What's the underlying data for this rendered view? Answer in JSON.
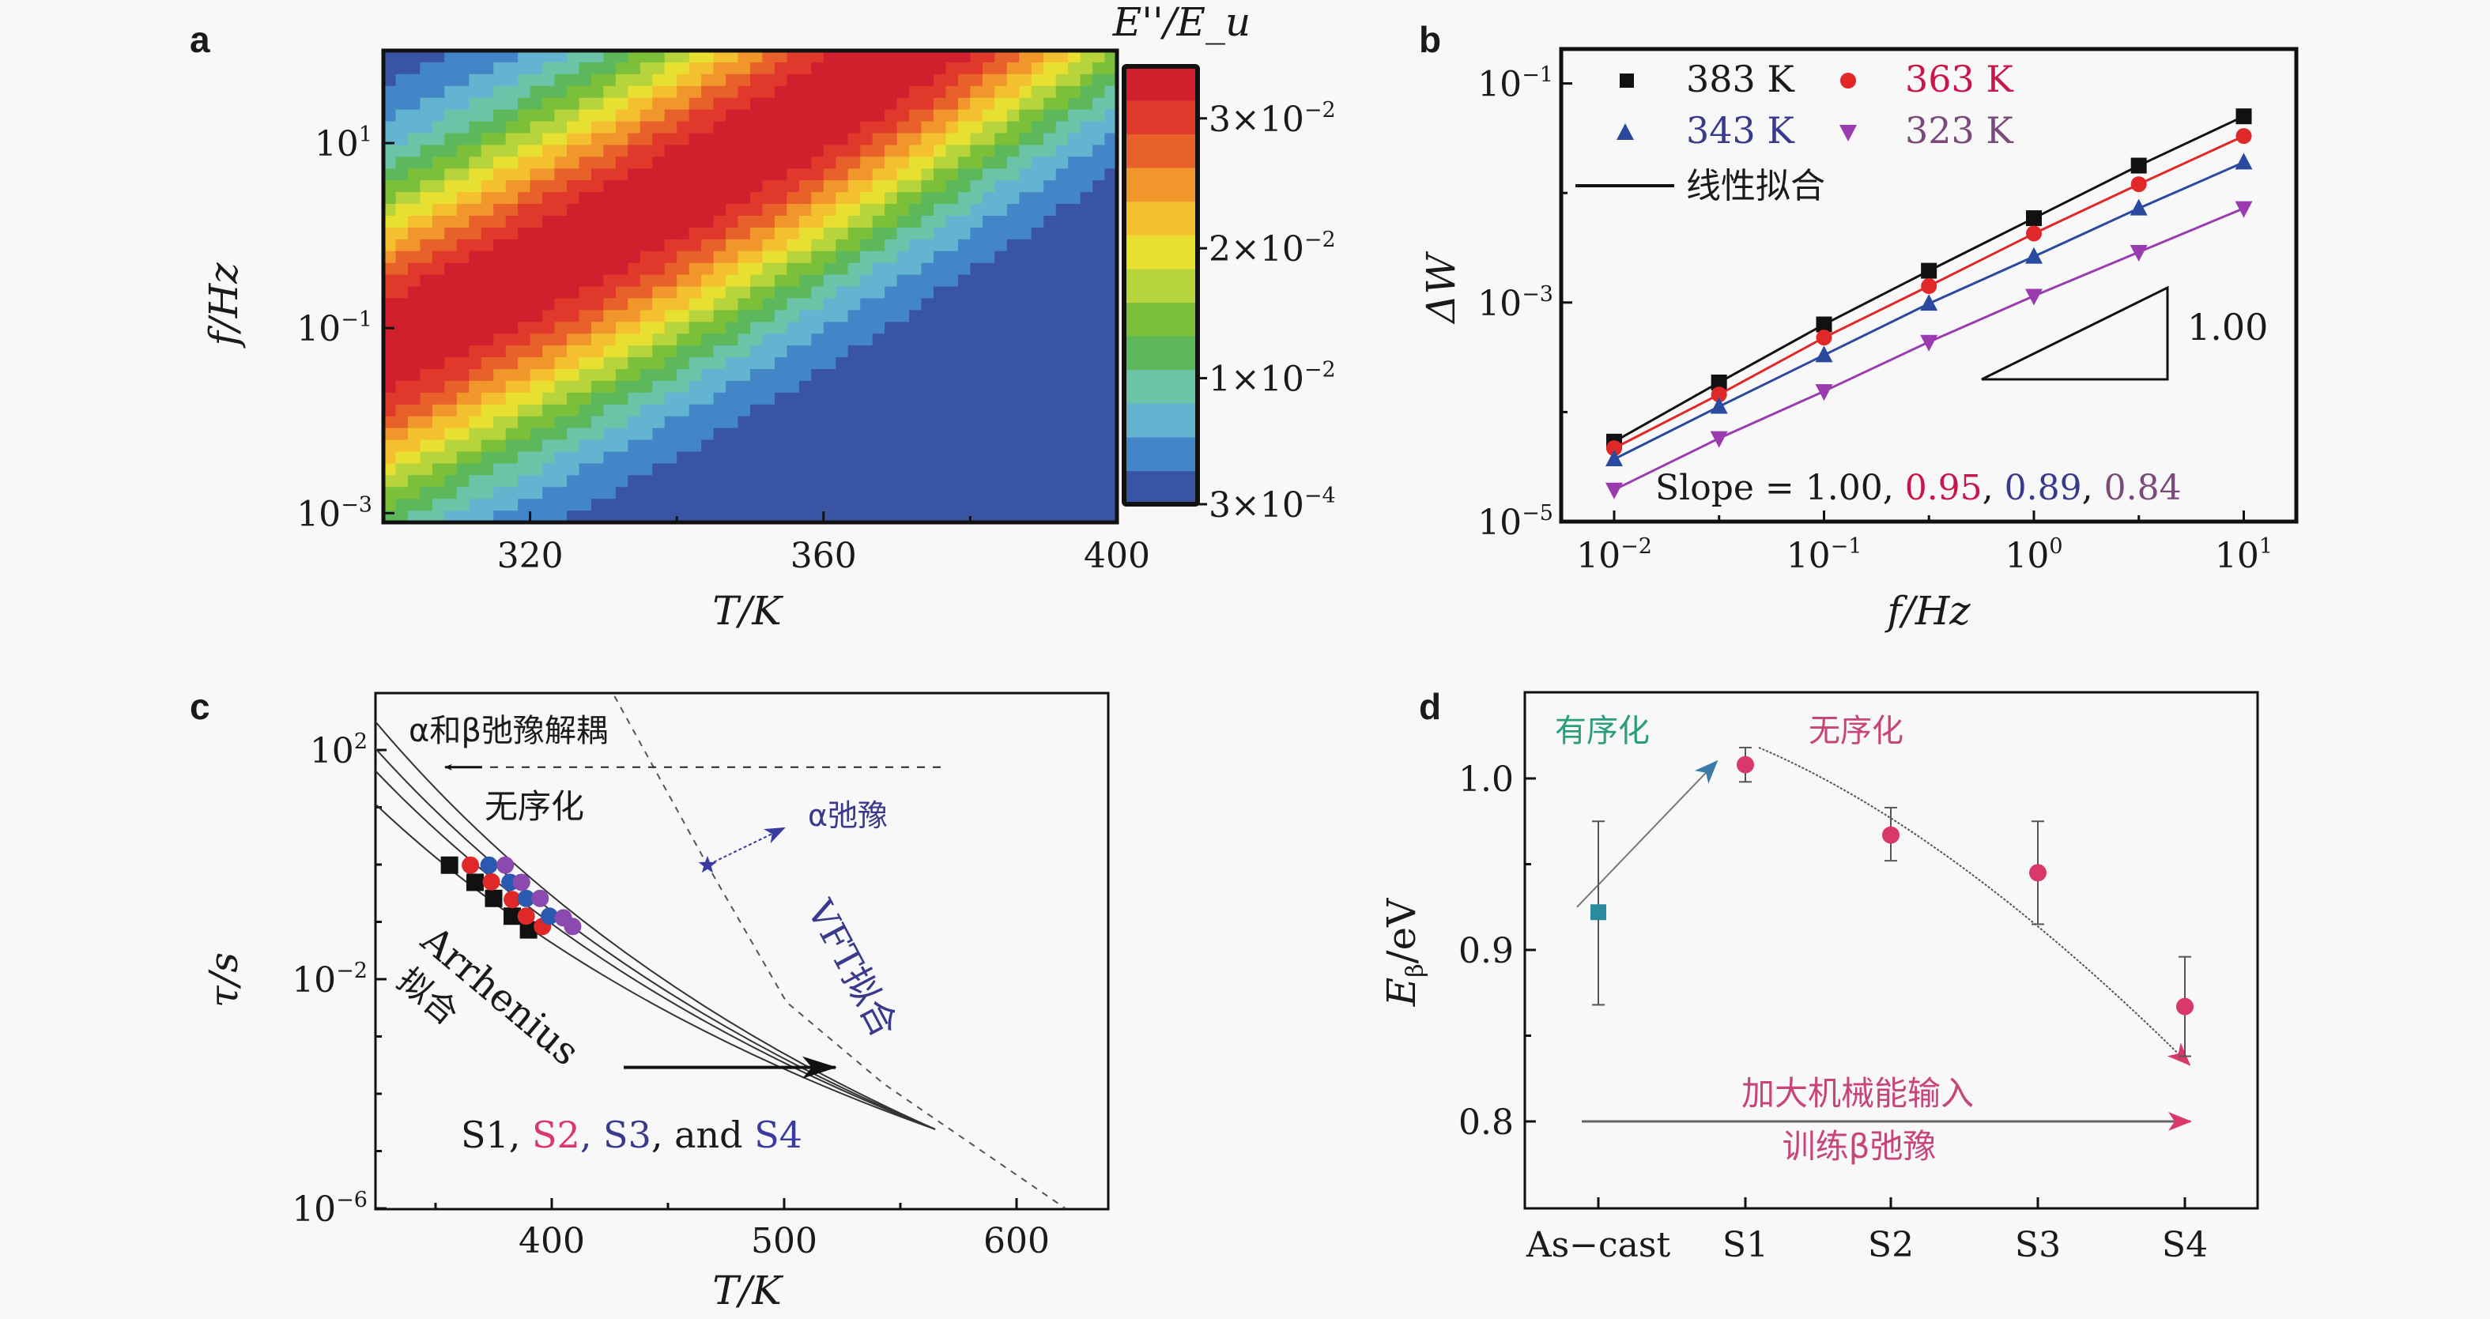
{
  "figure": {
    "panels": [
      "a",
      "b",
      "c",
      "d"
    ]
  },
  "chart_data": [
    {
      "id": "a",
      "type": "heatmap",
      "title": "",
      "xlabel": "T/K",
      "ylabel": "f/Hz",
      "x_range": [
        300,
        400
      ],
      "y_range_log10": [
        -3.1,
        2.0
      ],
      "x_ticks": [
        320,
        360,
        400
      ],
      "x_tick_labels": [
        "320",
        "360",
        "400"
      ],
      "y_ticks_log10": [
        1,
        -1,
        -3
      ],
      "y_tick_labels": [
        "10^1",
        "10^-1",
        "10^-3"
      ],
      "colorbar": {
        "title": "E''/E_u",
        "min": 0.0003,
        "max": 0.034,
        "ticks": [
          0.03,
          0.02,
          0.01,
          0.0003
        ],
        "tick_labels": [
          "3×10^-2",
          "2×10^-2",
          "1×10^-2",
          "3×10^-4"
        ],
        "colors": [
          "#3a54a4",
          "#4386c8",
          "#62b4d0",
          "#6cc4a8",
          "#5cb85a",
          "#7cc03a",
          "#b8d43c",
          "#e8e030",
          "#f4c030",
          "#f0962a",
          "#e8602a",
          "#e0382a",
          "#d0202e"
        ]
      },
      "description": "Loss modulus peak ridge runs diagonally: peak temperature rises with frequency"
    },
    {
      "id": "b",
      "type": "scatter",
      "xlabel": "f/Hz",
      "ylabel": "ΔW",
      "x_scale": "log",
      "y_scale": "log",
      "x_range_log10": [
        -2.26,
        1.25
      ],
      "y_range_log10": [
        -5,
        -0.69
      ],
      "x_ticks_log10": [
        -2,
        -1,
        0,
        1
      ],
      "x_tick_labels": [
        "10^-2",
        "10^-1",
        "10^0",
        "10^1"
      ],
      "y_ticks_log10": [
        -1,
        -3,
        -5
      ],
      "y_tick_labels": [
        "10^-1",
        "10^-3",
        "10^-5"
      ],
      "x": [
        0.01,
        0.0316,
        0.1,
        0.316,
        1,
        3.16,
        10
      ],
      "series": [
        {
          "name": "383 K",
          "marker": "square",
          "color": "#111111",
          "label_color": "#111111",
          "log10_values": [
            -4.27,
            -3.73,
            -3.2,
            -2.71,
            -2.23,
            -1.75,
            -1.3
          ]
        },
        {
          "name": "363 K",
          "marker": "circle",
          "color": "#e02828",
          "label_color": "#c8174a",
          "log10_values": [
            -4.33,
            -3.84,
            -3.32,
            -2.85,
            -2.37,
            -1.92,
            -1.48
          ]
        },
        {
          "name": "343 K",
          "marker": "triangle-up",
          "color": "#2a4aa0",
          "label_color": "#3a3a8c",
          "log10_values": [
            -4.43,
            -3.95,
            -3.48,
            -3.01,
            -2.58,
            -2.14,
            -1.72
          ]
        },
        {
          "name": "323 K",
          "marker": "triangle-down",
          "color": "#9a3cb0",
          "label_color": "#7a4a7a",
          "log10_values": [
            -4.71,
            -4.24,
            -3.81,
            -3.36,
            -2.94,
            -2.54,
            -2.14
          ]
        }
      ],
      "fit_legend": "线性拟合",
      "slope_prefix": "Slope = ",
      "slopes": [
        "1.00",
        "0.95",
        "0.89",
        "0.84"
      ],
      "triangle_label": "1.00",
      "legend_position": "top-left"
    },
    {
      "id": "c",
      "type": "scatter",
      "xlabel": "T/K",
      "ylabel": "τ/s",
      "y_scale": "log",
      "x_range": [
        324,
        639
      ],
      "y_range_log10": [
        -6,
        3
      ],
      "x_ticks": [
        400,
        500,
        600
      ],
      "x_tick_labels": [
        "400",
        "500",
        "600"
      ],
      "y_ticks_log10": [
        2,
        -2,
        -6
      ],
      "y_tick_labels": [
        "10^2",
        "10^-2",
        "10^-6"
      ],
      "series": [
        {
          "name": "S1",
          "marker": "square",
          "color": "#111111",
          "T": [
            356,
            367,
            375,
            383,
            390
          ],
          "log10_tau": [
            -0.01,
            -0.31,
            -0.59,
            -0.9,
            -1.14
          ]
        },
        {
          "name": "S2",
          "marker": "circle",
          "color": "#e02828",
          "T": [
            365,
            374,
            383,
            389,
            396
          ],
          "log10_tau": [
            -0.01,
            -0.3,
            -0.61,
            -0.9,
            -1.08
          ]
        },
        {
          "name": "S3",
          "marker": "circle",
          "color": "#2a5ab0",
          "T": [
            373,
            382,
            389,
            399
          ],
          "log10_tau": [
            -0.01,
            -0.31,
            -0.59,
            -0.9
          ]
        },
        {
          "name": "S4",
          "marker": "circle",
          "color": "#8a4ab0",
          "T": [
            380,
            387,
            395,
            405,
            409
          ],
          "log10_tau": [
            -0.01,
            -0.31,
            -0.59,
            -0.93,
            -1.08
          ]
        }
      ],
      "arrhenius_fits": [
        {
          "T": [
            324,
            565
          ],
          "log10_tau": [
            2.5,
            -4.62
          ]
        },
        {
          "T": [
            324,
            565
          ],
          "log10_tau": [
            2.03,
            -4.62
          ]
        },
        {
          "T": [
            324,
            565
          ],
          "log10_tau": [
            1.64,
            -4.62
          ]
        },
        {
          "T": [
            324,
            565
          ],
          "log10_tau": [
            1.06,
            -4.62
          ]
        }
      ],
      "vft_fit": {
        "T": [
          427,
          467,
          501,
          543,
          621
        ],
        "log10_tau": [
          2.94,
          -0.01,
          -2.4,
          -3.83,
          -6.0
        ]
      },
      "alpha_point": {
        "T": 467,
        "log10_tau": -0.01,
        "color": "#3a3aa0"
      },
      "decoupling_line_log10_tau": 1.7,
      "annotations": {
        "decoupling": "α和β弛豫解耦",
        "disorder": "无序化",
        "alpha_relax": "α弛豫",
        "arrhenius": "Arrhenius",
        "arrhenius_fit": "拟合",
        "vft_fit": "VFT拟合",
        "samples_prefix": "S1, ",
        "samples": [
          "S2",
          ", S3",
          ", and ",
          "S4"
        ]
      }
    },
    {
      "id": "d",
      "type": "scatter",
      "xlabel": "",
      "ylabel": "E_β/eV",
      "y_range": [
        0.75,
        1.05
      ],
      "y_ticks": [
        1.0,
        0.9,
        0.8
      ],
      "y_tick_labels": [
        "1.0",
        "0.9",
        "0.8"
      ],
      "categories": [
        "As−cast",
        "S1",
        "S2",
        "S3",
        "S4"
      ],
      "values": [
        0.922,
        1.008,
        0.967,
        0.945,
        0.867
      ],
      "err_low": [
        0.868,
        0.998,
        0.952,
        0.915,
        0.838
      ],
      "err_high": [
        0.975,
        1.018,
        0.983,
        0.975,
        0.896
      ],
      "point_colors": [
        "#2a8aa0",
        "#d8386a",
        "#d8386a",
        "#d8386a",
        "#d8386a"
      ],
      "annotations": {
        "ordering": "有序化",
        "disordering": "无序化",
        "increase_energy": "加大机械能输入",
        "train_beta": "训练β弛豫"
      },
      "colors": {
        "ordering": "#2a9d7c",
        "disordering": "#c8457a"
      }
    }
  ]
}
